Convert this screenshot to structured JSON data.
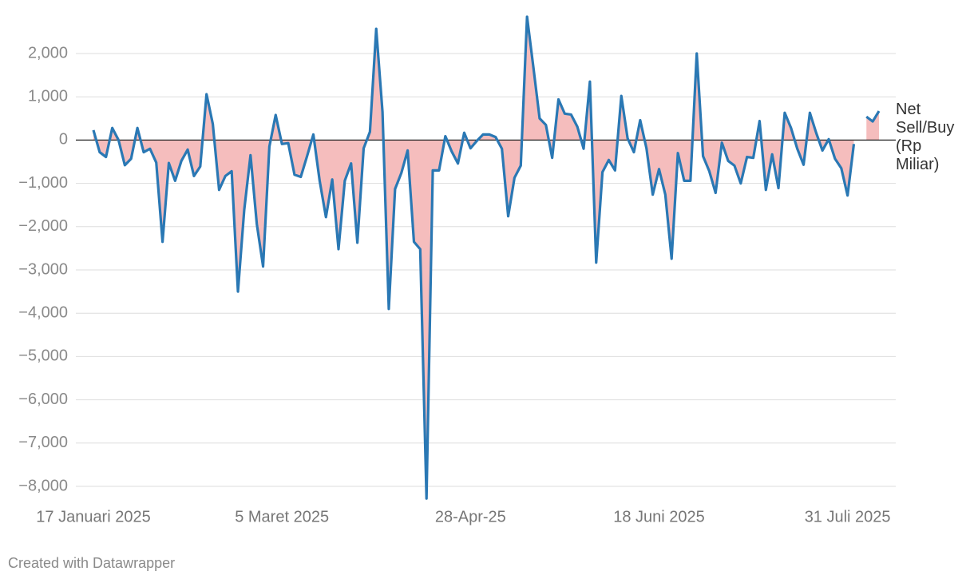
{
  "chart_data": {
    "type": "line",
    "categories": [
      "17 Januari 2025",
      null,
      null,
      null,
      null,
      null,
      null,
      null,
      null,
      null,
      null,
      null,
      null,
      null,
      null,
      null,
      null,
      null,
      null,
      null,
      null,
      null,
      null,
      null,
      null,
      null,
      null,
      null,
      null,
      null,
      "5 Maret 2025",
      null,
      null,
      null,
      null,
      null,
      null,
      null,
      null,
      null,
      null,
      null,
      null,
      null,
      null,
      null,
      null,
      null,
      null,
      null,
      null,
      null,
      null,
      null,
      null,
      null,
      null,
      null,
      null,
      null,
      "28-Apr-25",
      null,
      null,
      null,
      null,
      null,
      null,
      null,
      null,
      null,
      null,
      null,
      null,
      null,
      null,
      null,
      null,
      null,
      null,
      null,
      null,
      null,
      null,
      null,
      null,
      null,
      null,
      null,
      null,
      null,
      "18 Juni 2025",
      null,
      null,
      null,
      null,
      null,
      null,
      null,
      null,
      null,
      null,
      null,
      null,
      null,
      null,
      null,
      null,
      null,
      null,
      null,
      null,
      null,
      null,
      null,
      null,
      null,
      null,
      null,
      null,
      null,
      "31 Juli 2025",
      null,
      null,
      null,
      null,
      null
    ],
    "series": [
      {
        "name": "Net Sell/Buy (Rp Miliar)",
        "color": "#2a78b4",
        "area_color": "#f5bdbd",
        "values": [
          230,
          -280,
          -390,
          280,
          0,
          -580,
          -430,
          280,
          -280,
          -200,
          -520,
          -2350,
          -530,
          -940,
          -480,
          -220,
          -830,
          -610,
          1060,
          370,
          -1150,
          -830,
          -720,
          -3500,
          -1610,
          -350,
          -1940,
          -2920,
          -150,
          580,
          -90,
          -70,
          -800,
          -850,
          -370,
          130,
          -940,
          -1780,
          -910,
          -2520,
          -940,
          -540,
          -2370,
          -190,
          190,
          2570,
          650,
          -3900,
          -1130,
          -760,
          -240,
          -2350,
          -2520,
          -8280,
          -700,
          -700,
          90,
          -260,
          -540,
          170,
          -190,
          -20,
          130,
          130,
          70,
          -200,
          -1760,
          -870,
          -590,
          2850,
          1690,
          500,
          350,
          -410,
          940,
          610,
          590,
          310,
          -200,
          1350,
          -2830,
          -740,
          -460,
          -700,
          1020,
          40,
          -280,
          460,
          -190,
          -1260,
          -670,
          -1260,
          -2740,
          -300,
          -940,
          -940,
          2000,
          -370,
          -720,
          -1220,
          -60,
          -480,
          -590,
          -1000,
          -390,
          -410,
          440,
          -1150,
          -330,
          -1110,
          630,
          280,
          -200,
          -570,
          630,
          170,
          -240,
          20,
          -430,
          -650,
          -1280,
          -90,
          null,
          540,
          430,
          670
        ]
      }
    ],
    "ylim": [
      -8300,
      2900
    ],
    "yticks": [
      {
        "value": 2000,
        "label": "2,000"
      },
      {
        "value": 1000,
        "label": "1,000"
      },
      0,
      {
        "value": -1000,
        "label": "−1,000"
      },
      {
        "value": -2000,
        "label": "−2,000"
      },
      {
        "value": -3000,
        "label": "−3,000"
      },
      {
        "value": -4000,
        "label": "−4,000"
      },
      {
        "value": -5000,
        "label": "−5,000"
      },
      {
        "value": -6000,
        "label": "−6,000"
      },
      {
        "value": -7000,
        "label": "−7,000"
      },
      {
        "value": -8000,
        "label": "−8,000"
      }
    ],
    "grid": true,
    "footer": "Created with Datawrapper"
  }
}
